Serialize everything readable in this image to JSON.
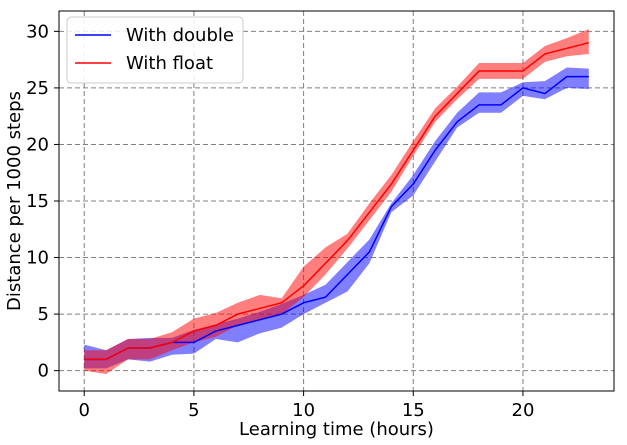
{
  "chart_data": {
    "type": "line",
    "title": "",
    "xlabel": "Learning time (hours)",
    "ylabel": "Distance per 1000 steps",
    "xlim": [
      -1.15,
      24.15
    ],
    "ylim": [
      -1.8,
      31.8
    ],
    "xticks": [
      0,
      5,
      10,
      15,
      20
    ],
    "yticks": [
      0,
      5,
      10,
      15,
      20,
      25,
      30
    ],
    "grid": true,
    "grid_style": "dashed",
    "legend_position": "top-left",
    "x": [
      0,
      1,
      2,
      3,
      4,
      5,
      6,
      7,
      8,
      9,
      10,
      11,
      12,
      13,
      14,
      15,
      16,
      17,
      18,
      19,
      20,
      21,
      22,
      23
    ],
    "series": [
      {
        "name": "With double",
        "color": "#0000ff",
        "mean": [
          1.0,
          1.0,
          2.0,
          2.0,
          2.5,
          2.5,
          3.5,
          4.0,
          4.5,
          5.0,
          6.0,
          6.5,
          8.5,
          10.5,
          14.5,
          16.5,
          19.5,
          22.0,
          23.5,
          23.5,
          25.0,
          24.5,
          26.0,
          26.0
        ],
        "lower": [
          0.2,
          0.2,
          1.0,
          0.8,
          1.4,
          1.5,
          2.8,
          2.5,
          3.3,
          3.8,
          5.0,
          6.0,
          7.0,
          9.5,
          14.0,
          15.5,
          18.5,
          21.5,
          22.8,
          22.8,
          24.3,
          24.0,
          25.0,
          24.9
        ],
        "upper": [
          2.3,
          1.8,
          2.8,
          2.9,
          2.9,
          3.6,
          4.1,
          4.6,
          5.2,
          5.9,
          6.7,
          7.6,
          9.6,
          11.6,
          14.8,
          17.3,
          20.3,
          22.8,
          24.6,
          24.6,
          25.5,
          25.6,
          26.8,
          26.7
        ]
      },
      {
        "name": "With float",
        "color": "#ff0000",
        "mean": [
          1.0,
          1.0,
          2.0,
          2.0,
          2.5,
          3.5,
          4.0,
          5.0,
          5.5,
          6.0,
          7.5,
          9.5,
          11.5,
          14.0,
          16.5,
          19.5,
          22.5,
          24.5,
          26.5,
          26.5,
          26.5,
          28.0,
          28.5,
          29.0
        ],
        "lower": [
          0.0,
          -0.3,
          1.0,
          1.0,
          1.8,
          2.5,
          3.0,
          4.0,
          4.5,
          5.0,
          6.5,
          8.5,
          10.8,
          13.3,
          15.8,
          19.0,
          22.0,
          24.0,
          25.8,
          25.8,
          25.8,
          27.3,
          27.8,
          28.0
        ],
        "upper": [
          1.8,
          1.8,
          2.8,
          2.8,
          3.4,
          4.6,
          5.1,
          6.0,
          6.7,
          6.4,
          9.2,
          10.9,
          12.1,
          14.8,
          17.3,
          20.3,
          23.2,
          25.1,
          27.2,
          27.2,
          27.2,
          28.7,
          29.4,
          30.2
        ]
      }
    ]
  }
}
